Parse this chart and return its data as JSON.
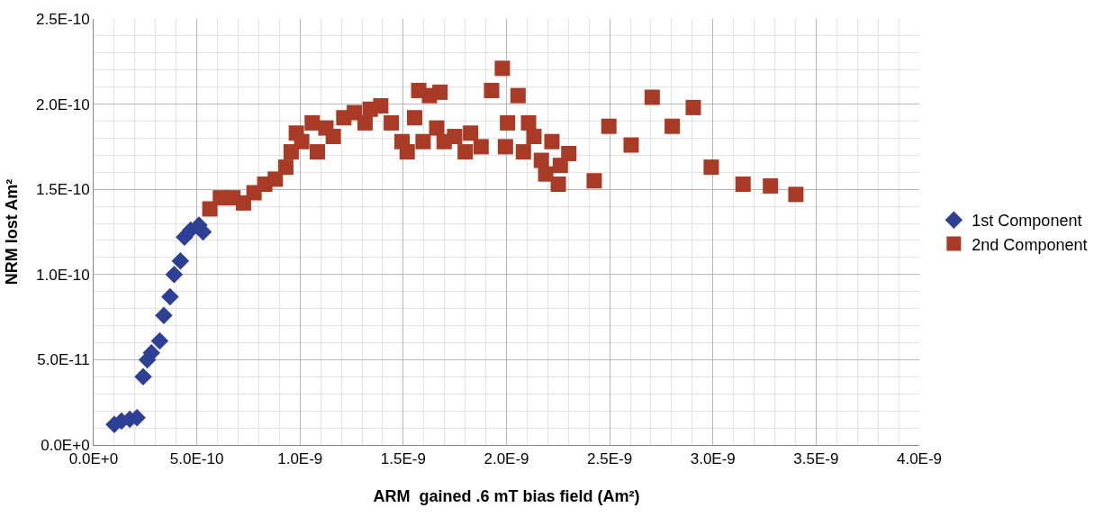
{
  "chart_data": {
    "type": "scatter",
    "xlabel": "ARM  gained .6 mT bias field (Am²)",
    "ylabel": "NRM lost Am²",
    "xlim": [
      0,
      4e-09
    ],
    "ylim": [
      0,
      2.5e-10
    ],
    "xticks": [
      {
        "value": 0,
        "label": "0.0E+0"
      },
      {
        "value": 5e-10,
        "label": "5.0E-10"
      },
      {
        "value": 1e-09,
        "label": "1.0E-9"
      },
      {
        "value": 1.5e-09,
        "label": "1.5E-9"
      },
      {
        "value": 2e-09,
        "label": "2.0E-9"
      },
      {
        "value": 2.5e-09,
        "label": "2.5E-9"
      },
      {
        "value": 3e-09,
        "label": "3.0E-9"
      },
      {
        "value": 3.5e-09,
        "label": "3.5E-9"
      },
      {
        "value": 4e-09,
        "label": "4.0E-9"
      }
    ],
    "yticks": [
      {
        "value": 0,
        "label": "0.0E+0"
      },
      {
        "value": 5e-11,
        "label": "5.0E-11"
      },
      {
        "value": 1e-10,
        "label": "1.0E-10"
      },
      {
        "value": 1.5e-10,
        "label": "1.5E-10"
      },
      {
        "value": 2e-10,
        "label": "2.0E-10"
      },
      {
        "value": 2.5e-10,
        "label": "2.5E-10"
      }
    ],
    "grid": true,
    "legend": "right",
    "series": [
      {
        "name": "1st Component",
        "color": "#2e3f96",
        "marker": "diamond",
        "x": [
          1e-10,
          1.35e-10,
          1.75e-10,
          2.1e-10,
          2.4e-10,
          2.6e-10,
          2.8e-10,
          3.2e-10,
          3.4e-10,
          3.7e-10,
          3.9e-10,
          4.2e-10,
          4.4e-10,
          4.7e-10,
          5.1e-10,
          5.3e-10
        ],
        "values": [
          1.2e-11,
          1.4e-11,
          1.5e-11,
          1.6e-11,
          4e-11,
          5e-11,
          5.4e-11,
          6.1e-11,
          7.6e-11,
          8.7e-11,
          1e-10,
          1.08e-10,
          1.22e-10,
          1.26e-10,
          1.29e-10,
          1.25e-10
        ]
      },
      {
        "name": "2nd Component",
        "color": "#a83a26",
        "marker": "square",
        "x": [
          5.63e-10,
          6.14e-10,
          6.75e-10,
          7.26e-10,
          7.77e-10,
          8.29e-10,
          8.8e-10,
          9.31e-10,
          9.57e-10,
          9.82e-10,
          1.008e-09,
          1.059e-09,
          1.084e-09,
          1.125e-09,
          1.161e-09,
          1.212e-09,
          1.263e-09,
          1.315e-09,
          1.34e-09,
          1.391e-09,
          1.442e-09,
          1.494e-09,
          1.519e-09,
          1.555e-09,
          1.575e-09,
          1.627e-09,
          1.678e-09,
          1.596e-09,
          1.662e-09,
          1.698e-09,
          1.749e-09,
          1.8e-09,
          1.826e-09,
          1.877e-09,
          1.928e-09,
          1.98e-09,
          2.005e-09,
          1.995e-09,
          2.056e-09,
          2.082e-09,
          2.107e-09,
          2.133e-09,
          2.169e-09,
          2.19e-09,
          2.22e-09,
          2.251e-09,
          2.261e-09,
          2.302e-09,
          2.425e-09,
          2.496e-09,
          2.604e-09,
          2.706e-09,
          2.803e-09,
          2.905e-09,
          2.992e-09,
          3.146e-09,
          3.279e-09,
          3.402e-09
        ],
        "values": [
          1.385e-10,
          1.45e-10,
          1.45e-10,
          1.42e-10,
          1.48e-10,
          1.53e-10,
          1.56e-10,
          1.63e-10,
          1.72e-10,
          1.83e-10,
          1.78e-10,
          1.89e-10,
          1.72e-10,
          1.86e-10,
          1.81e-10,
          1.92e-10,
          1.95e-10,
          1.89e-10,
          1.97e-10,
          1.99e-10,
          1.89e-10,
          1.78e-10,
          1.72e-10,
          1.92e-10,
          2.08e-10,
          2.05e-10,
          2.07e-10,
          1.78e-10,
          1.86e-10,
          1.78e-10,
          1.81e-10,
          1.72e-10,
          1.83e-10,
          1.75e-10,
          2.08e-10,
          2.21e-10,
          1.89e-10,
          1.75e-10,
          2.05e-10,
          1.72e-10,
          1.89e-10,
          1.81e-10,
          1.67e-10,
          1.59e-10,
          1.78e-10,
          1.53e-10,
          1.64e-10,
          1.71e-10,
          1.55e-10,
          1.87e-10,
          1.76e-10,
          2.04e-10,
          1.87e-10,
          1.98e-10,
          1.63e-10,
          1.53e-10,
          1.52e-10,
          1.47e-10
        ]
      }
    ]
  }
}
